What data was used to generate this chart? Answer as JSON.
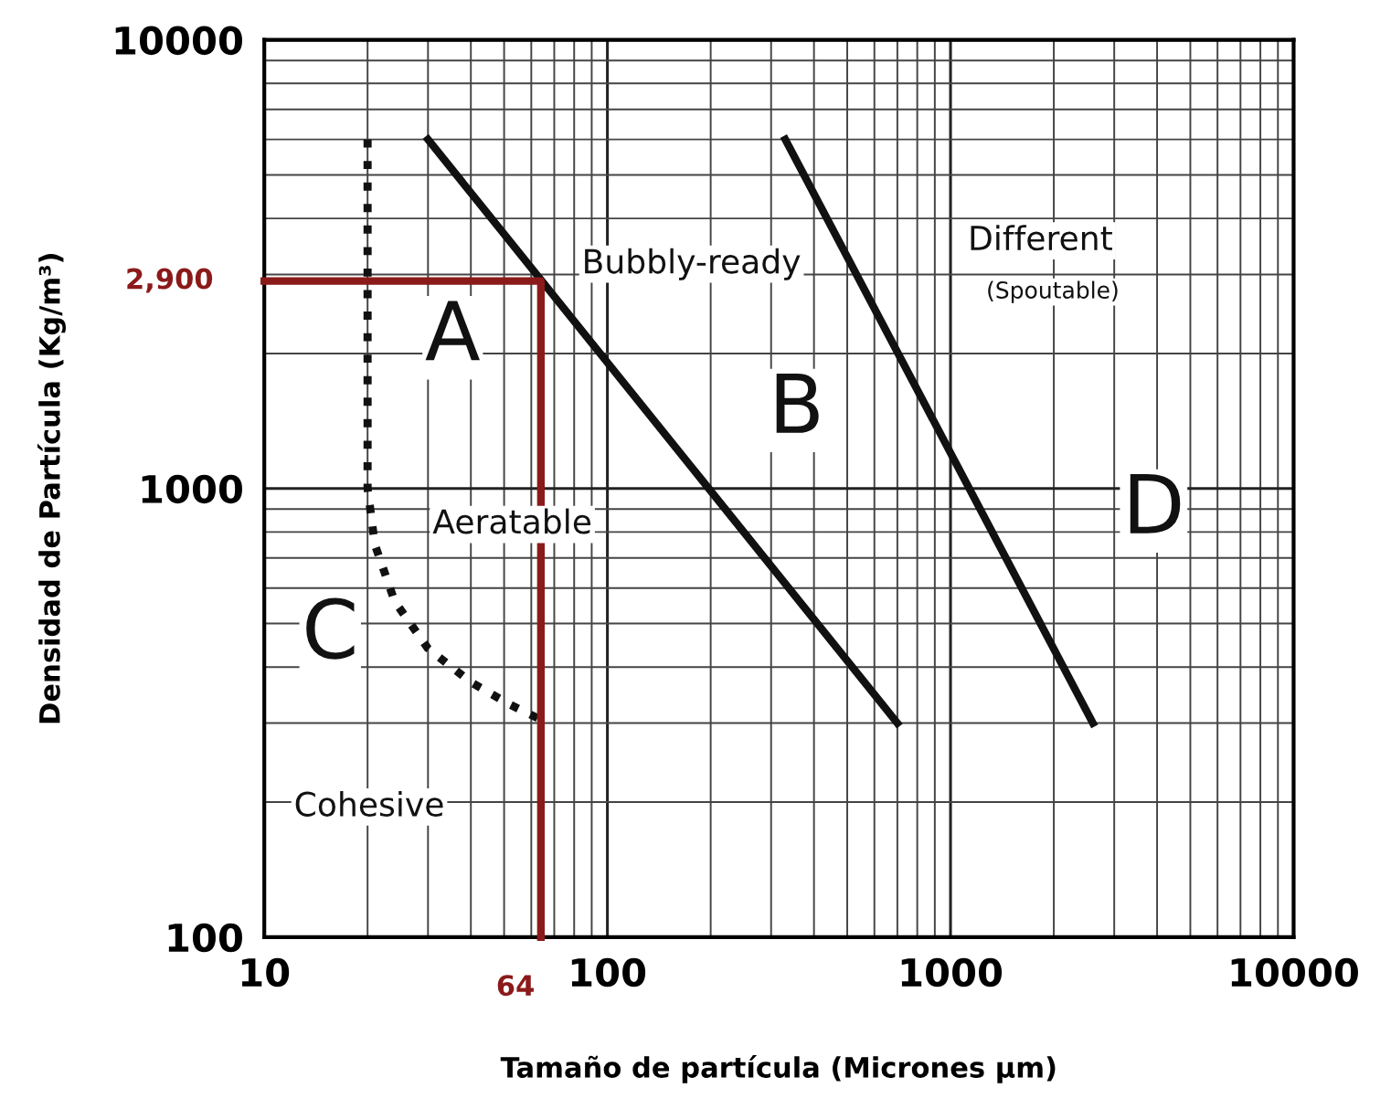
{
  "chart_data": {
    "type": "line",
    "xlabel": "Tamaño de partícula (Micrones μm)",
    "ylabel": "Densidad de Partícula (Kg/m³)",
    "log": "xy",
    "xlim": [
      10,
      10000
    ],
    "ylim": [
      100,
      10000
    ],
    "xticks": [
      10,
      100,
      1000,
      10000
    ],
    "yticks": [
      100,
      1000,
      10000
    ],
    "grid": true,
    "marker": "none",
    "series": [
      {
        "x": [
          30,
          700
        ],
        "values": [
          6000,
          300
        ],
        "color": "#111111",
        "line_style": "solid"
      },
      {
        "x": [
          330,
          2600
        ],
        "values": [
          6000,
          300
        ],
        "color": "#111111",
        "line_style": "solid"
      },
      {
        "x": [
          20,
          20,
          21,
          24,
          30,
          40,
          52,
          67
        ],
        "values": [
          6000,
          1000,
          750,
          560,
          440,
          370,
          330,
          300
        ],
        "color": "#111111",
        "line_style": "dotted"
      },
      {
        "x": [
          10,
          64,
          64
        ],
        "values": [
          2900,
          2900,
          100
        ],
        "color": "#8b1a1a",
        "line_style": "solid"
      }
    ],
    "annotations": [
      {
        "text": "2,900",
        "x": 10,
        "y": 2900
      },
      {
        "text": "64",
        "x": 64,
        "y": 100
      },
      "A",
      "Bubbly-ready",
      "B",
      "Different",
      "(Spoutable)",
      "D",
      "Aeratable",
      "C",
      "Cohesive"
    ]
  }
}
